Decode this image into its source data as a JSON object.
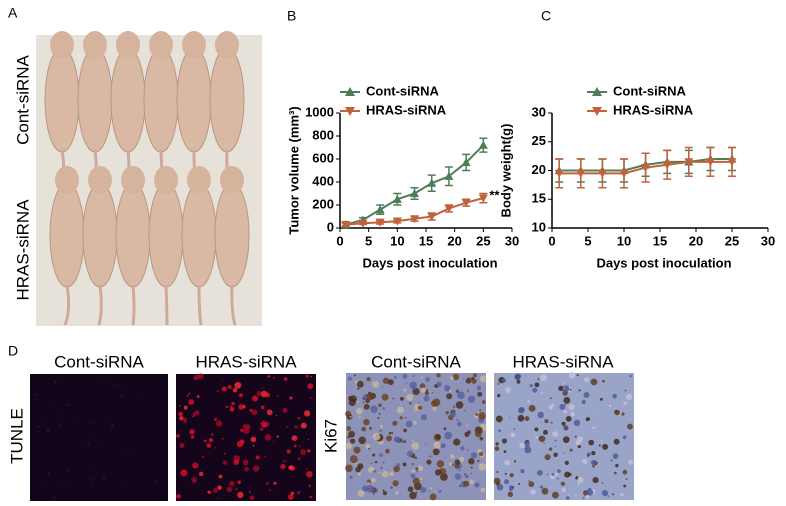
{
  "panels": {
    "A": {
      "letter": "A",
      "rows": [
        "Cont-siRNA",
        "HRAS-siRNA"
      ]
    },
    "B": {
      "letter": "B"
    },
    "C": {
      "letter": "C"
    },
    "D": {
      "letter": "D",
      "tunel_label": "TUNLE",
      "ki67_label": "Ki67",
      "columns": [
        "Cont-siRNA",
        "HRAS-siRNA",
        "Cont-siRNA",
        "HRAS-siRNA"
      ]
    }
  },
  "chart_data": [
    {
      "type": "line",
      "y_label": "Tumor volume (mm³)",
      "x_label": "Days post inoculation",
      "x": [
        1,
        4,
        7,
        10,
        13,
        16,
        19,
        22,
        25
      ],
      "xlim": [
        0,
        30
      ],
      "xticks": [
        0,
        5,
        10,
        15,
        20,
        25,
        30
      ],
      "ylim": [
        0,
        1000
      ],
      "yticks": [
        0,
        200,
        400,
        600,
        800,
        1000
      ],
      "annotation": "**",
      "series": [
        {
          "name": "Cont-siRNA",
          "color": "#4f7d55",
          "marker": "triangle-up",
          "values": [
            30,
            70,
            160,
            250,
            300,
            390,
            450,
            570,
            720
          ],
          "errors": [
            20,
            20,
            40,
            50,
            50,
            70,
            80,
            70,
            60
          ]
        },
        {
          "name": "HRAS-siRNA",
          "color": "#c0623e",
          "marker": "triangle-down",
          "values": [
            30,
            40,
            50,
            60,
            80,
            100,
            170,
            220,
            260
          ],
          "errors": [
            10,
            10,
            15,
            15,
            20,
            30,
            30,
            30,
            40
          ]
        }
      ]
    },
    {
      "type": "line",
      "y_label": "Body weight(g)",
      "x_label": "Days post inoculation",
      "x": [
        1,
        4,
        7,
        10,
        13,
        16,
        19,
        22,
        25
      ],
      "xlim": [
        0,
        30
      ],
      "xticks": [
        0,
        5,
        10,
        15,
        20,
        25,
        30
      ],
      "ylim": [
        10,
        30
      ],
      "yticks": [
        10,
        15,
        20,
        25,
        30
      ],
      "series": [
        {
          "name": "Cont-siRNA",
          "color": "#4f7d55",
          "marker": "triangle-up",
          "values": [
            20,
            20,
            20,
            20,
            21,
            21.5,
            21.5,
            22,
            22
          ],
          "errors": [
            2,
            2,
            2,
            2,
            2,
            2,
            2,
            2,
            2
          ]
        },
        {
          "name": "HRAS-siRNA",
          "color": "#c0623e",
          "marker": "triangle-down",
          "values": [
            19.5,
            19.5,
            19.5,
            19.5,
            20.5,
            21,
            21.5,
            21.5,
            21.5
          ],
          "errors": [
            2.5,
            2.5,
            2.5,
            2.5,
            2.5,
            2.5,
            2.5,
            2.5,
            2.5
          ]
        }
      ]
    }
  ]
}
